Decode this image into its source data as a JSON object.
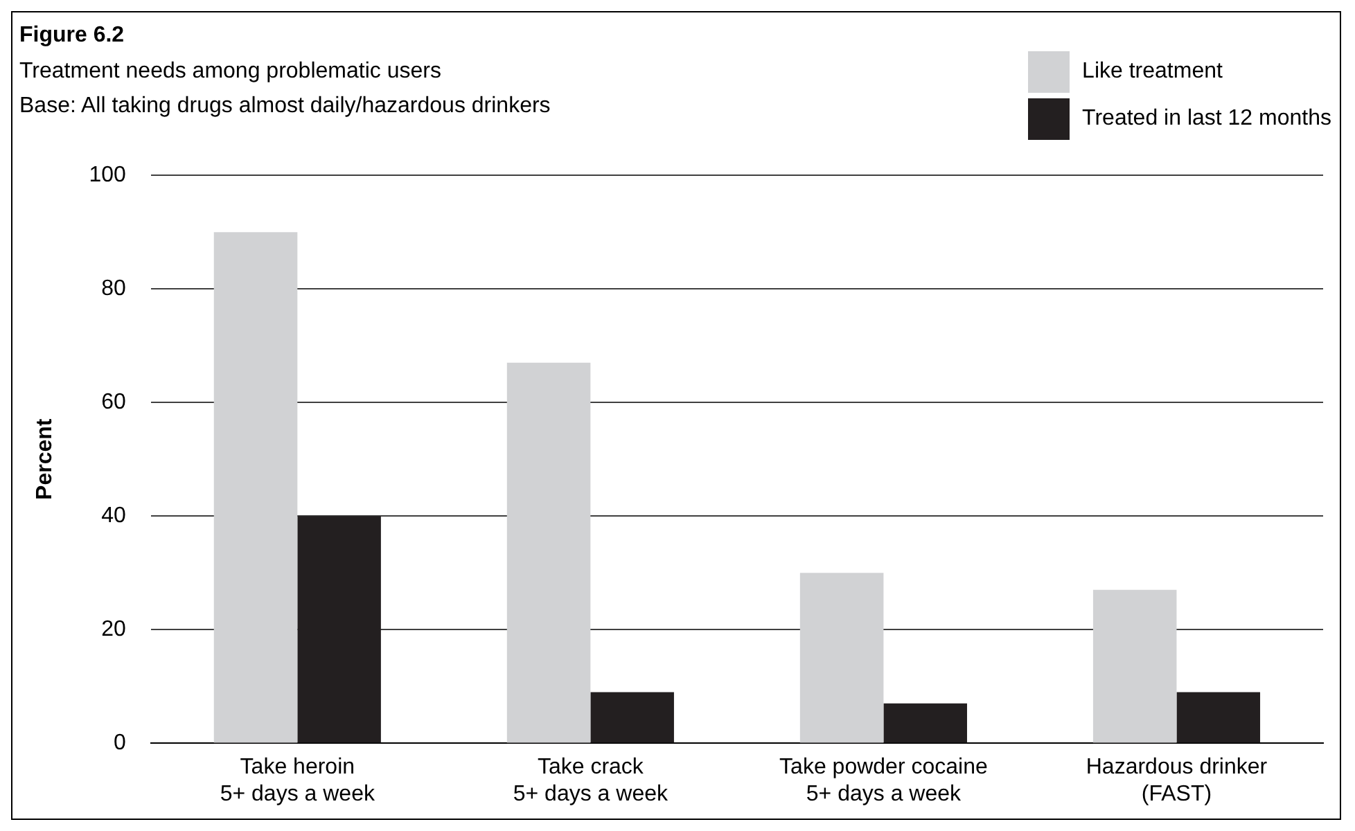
{
  "chart_data": {
    "type": "bar",
    "title": "Figure 6.2",
    "subtitle": "Treatment needs among problematic users\nBase: All taking drugs almost daily/hazardous drinkers",
    "ylabel": "Percent",
    "categories": [
      "Take heroin\n5+ days a week",
      "Take crack\n5+ days a week",
      "Take powder cocaine\n5+ days a week",
      "Hazardous drinker\n(FAST)"
    ],
    "series": [
      {
        "name": "Like treatment",
        "color": "#d1d2d4",
        "values": [
          90,
          67,
          30,
          27
        ]
      },
      {
        "name": "Treated in last 12 months",
        "color": "#231f20",
        "values": [
          40,
          9,
          7,
          9
        ]
      }
    ],
    "ylim": [
      0,
      100
    ],
    "yticks": [
      0,
      20,
      40,
      60,
      80,
      100
    ],
    "grid": "y",
    "legend": "top right"
  }
}
